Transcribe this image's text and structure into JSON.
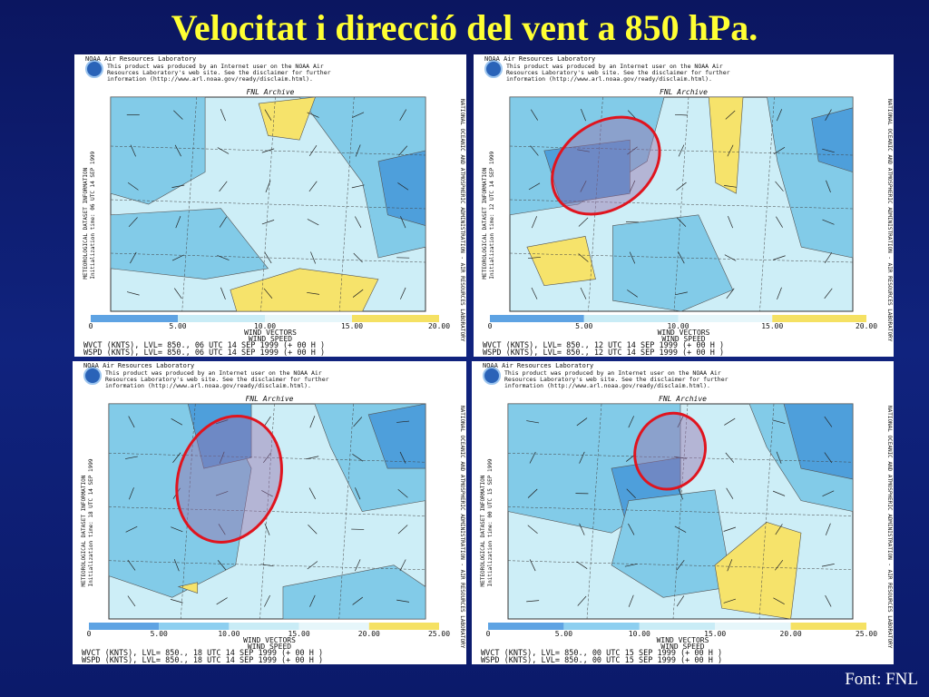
{
  "title": "Velocitat i direcció del vent a 850 hPa.",
  "panels": [
    {
      "lab": "NOAA Air Resources Laboratory",
      "disclaimer": [
        "This product was produced by an Internet user on the NOAA Air",
        "Resources Laboratory's web site.  See the disclaimer for further",
        "information (http://www.arl.noaa.gov/ready/disclaim.html)."
      ],
      "archive": "FNL Archive",
      "side_left": [
        "METEOROLOGICAL DATASET INFORMATION",
        "Initialization time: 06 UTC 14 SEP 1999"
      ],
      "side_right": "NATIONAL OCEANIC AND ATMOSPHERIC ADMINISTRATION - AIR RESOURCES LABORATORY",
      "colorbar_ticks": [
        "0",
        "5.00",
        "10.00",
        "15.00",
        "20.00"
      ],
      "legend": [
        "WIND VECTORS",
        "WIND SPEED"
      ],
      "captions": [
        "WVCT (KNTS),  LVL= 850., 06 UTC 14 SEP 1999 (+ 00 H )",
        "WSPD (KNTS),  LVL= 850., 06 UTC 14 SEP 1999 (+ 00 H )"
      ]
    },
    {
      "lab": "NOAA Air Resources Laboratory",
      "disclaimer": [
        "This product was produced by an Internet user on the NOAA Air",
        "Resources Laboratory's web site.  See the disclaimer for further",
        "information (http://www.arl.noaa.gov/ready/disclaim.html)."
      ],
      "archive": "FNL Archive",
      "side_left": [
        "METEOROLOGICAL DATASET INFORMATION",
        "Initialization time: 12 UTC 14 SEP 1999"
      ],
      "side_right": "NATIONAL OCEANIC AND ATMOSPHERIC ADMINISTRATION - AIR RESOURCES LABORATORY",
      "colorbar_ticks": [
        "0",
        "5.00",
        "10.00",
        "15.00",
        "20.00"
      ],
      "legend": [
        "WIND VECTORS",
        "WIND SPEED"
      ],
      "captions": [
        "WVCT (KNTS),  LVL= 850., 12 UTC 14 SEP 1999 (+ 00 H )",
        "WSPD (KNTS),  LVL= 850., 12 UTC 14 SEP 1999 (+ 00 H )"
      ]
    },
    {
      "lab": "NOAA Air Resources Laboratory",
      "disclaimer": [
        "This product was produced by an Internet user on the NOAA Air",
        "Resources Laboratory's web site.  See the disclaimer for further",
        "information (http://www.arl.noaa.gov/ready/disclaim.html)."
      ],
      "archive": "FNL Archive",
      "side_left": [
        "METEOROLOGICAL DATASET INFORMATION",
        "Initialization time: 18 UTC 14 SEP 1999"
      ],
      "side_right": "NATIONAL OCEANIC AND ATMOSPHERIC ADMINISTRATION - AIR RESOURCES LABORATORY",
      "colorbar_ticks": [
        "0",
        "5.00",
        "10.00",
        "15.00",
        "20.00",
        "25.00"
      ],
      "legend": [
        "WIND VECTORS",
        "WIND SPEED"
      ],
      "captions": [
        "WVCT (KNTS),  LVL= 850., 18 UTC 14 SEP 1999 (+ 00 H )",
        "WSPD (KNTS),  LVL= 850., 18 UTC 14 SEP 1999 (+ 00 H )"
      ]
    },
    {
      "lab": "NOAA Air Resources Laboratory",
      "disclaimer": [
        "This product was produced by an Internet user on the NOAA Air",
        "Resources Laboratory's web site.  See the disclaimer for further",
        "information (http://www.arl.noaa.gov/ready/disclaim.html)."
      ],
      "archive": "FNL Archive",
      "side_left": [
        "METEOROLOGICAL DATASET INFORMATION",
        "Initialization time: 00 UTC 15 SEP 1999"
      ],
      "side_right": "NATIONAL OCEANIC AND ATMOSPHERIC ADMINISTRATION - AIR RESOURCES LABORATORY",
      "colorbar_ticks": [
        "0",
        "5.00",
        "10.00",
        "15.00",
        "20.00",
        "25.00"
      ],
      "legend": [
        "WIND VECTORS",
        "WIND SPEED"
      ],
      "captions": [
        "WVCT (KNTS),  LVL= 850., 00 UTC 15 SEP 1999 (+ 00 H )",
        "WSPD (KNTS),  LVL= 850., 00 UTC 15 SEP 1999 (+ 00 H )"
      ]
    }
  ],
  "footer": "Font: FNL"
}
